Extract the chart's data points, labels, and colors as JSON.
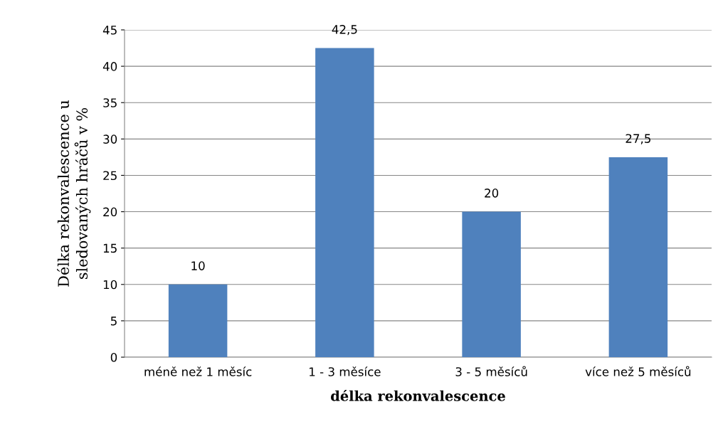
{
  "chart_data": {
    "type": "bar",
    "xlabel": "délka rekonvalescence",
    "ylabel": "Délka rekonvalescence u\nsledovaných hráčů v %",
    "categories": [
      "méně než 1 měsíc",
      "1 - 3 měsíce",
      "3 - 5 měsíců",
      "více než 5 měsíců"
    ],
    "values": [
      10,
      42.5,
      20,
      27.5
    ],
    "value_labels": [
      "10",
      "42,5",
      "20",
      "27,5"
    ],
    "color": "#4f81bd",
    "ylim": [
      0,
      45
    ],
    "yticks": [
      0,
      5,
      10,
      15,
      20,
      25,
      30,
      35,
      40,
      45
    ],
    "grid": "y",
    "legend": false
  }
}
